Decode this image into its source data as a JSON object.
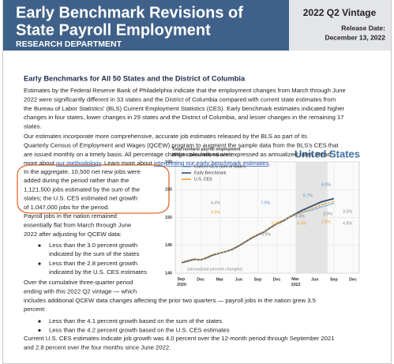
{
  "header": {
    "title_lines": [
      "Early Benchmark Revisions of",
      "State Payroll Employment"
    ],
    "department": "Research Department",
    "vintage": "2022 Q2 Vintage",
    "release_label": "Release Date:",
    "release_date": "December 13, 2022"
  },
  "section": {
    "heading": "Early Benchmarks for All 50 States and the District of Columbia",
    "paragraph_1": [
      "Estimates by the Federal Reserve Bank of Philadelphia indicate that the employment changes from March through June",
      "2022 were significantly different in 33 states and the District of Columbia compared with current state estimates from",
      "the Bureau of Labor Statistics' (BLS) Current Employment Statistics (CES). Early benchmark estimates indicated higher",
      "changes in four states, lower changes in 29 states and the District of Columbia, and lesser changes in the remaining 17",
      "states."
    ],
    "paragraph_2": [
      "Our estimates incorporate more comprehensive, accurate job estimates released by the BLS as part of its",
      "Quarterly Census of Employment and Wages (QCEW) program to augment the sample data from the BLS's CES that",
      "are issued monthly on a timely basis. All percentage change calculations are expressed as annualized rates. Read"
    ],
    "paragraph_2_last": [
      {
        "text": "more about ",
        "link": false
      },
      {
        "text": "our methodology",
        "link": true
      },
      {
        "text": ". Learn more about ",
        "link": false
      },
      {
        "text": "interpreting our early benchmark estimates",
        "link": true
      },
      {
        "text": ".",
        "link": false
      }
    ],
    "callout": [
      "In the aggregate, 10,500 net new jobs were",
      "added during the period rather than the",
      "1,121,500 jobs estimated by the sum of the",
      "states; the U.S. CES estimated net growth",
      "of 1,047,000 jobs for the period."
    ],
    "payroll_intro": [
      "Payroll jobs in the nation remained",
      "essentially flat from March through June",
      "2022 after adjusting for QCEW data:"
    ],
    "payroll_bullets": [
      [
        "Less than the 3.0 percent growth",
        "indicated by the sum of the states"
      ],
      [
        "Less than the 2.8 percent growth",
        "indicated by the U.S. CES estimates"
      ]
    ],
    "cumulative_intro": [
      "Over the cumulative three-quarter period",
      "ending with this 2022 Q2 vintage — which",
      "includes additional QCEW data changes affecting the prior two quarters — payroll jobs in the nation grew 3.5",
      "percent:"
    ],
    "cumulative_bullets": [
      "Less than the 4.1 percent growth based on the sum of the states",
      "Less than the 4.2 percent growth based on the U.S. CES estimates"
    ],
    "closing": [
      "Current U.S. CES estimates indicate job growth was 4.0 percent over the 12-month period through September 2021",
      "and 2.8 percent over the four months since June 2022."
    ]
  },
  "chart_data": {
    "type": "line",
    "title": "Total nonfarm payroll employment",
    "subtitle": "Millions (seasonally adjusted)",
    "region": "United States",
    "x": [
      "2020-09",
      "2020-10",
      "2020-11",
      "2020-12",
      "2021-01",
      "2021-02",
      "2021-03",
      "2021-04",
      "2021-05",
      "2021-06",
      "2021-07",
      "2021-08",
      "2021-09",
      "2021-10",
      "2021-11",
      "2021-12",
      "2022-01",
      "2022-02",
      "2022-03",
      "2022-04",
      "2022-05",
      "2022-06",
      "2022-07",
      "2022-08",
      "2022-09"
    ],
    "series": [
      {
        "name": "Current CES Sum of States",
        "color": "#8db8de",
        "values": [
          141.9,
          142.2,
          142.5,
          142.4,
          142.8,
          143.3,
          143.6,
          143.9,
          144.3,
          144.9,
          145.6,
          146.3,
          146.9,
          147.4,
          148.2,
          148.9,
          149.4,
          150.0,
          150.5,
          150.9,
          151.2,
          151.5,
          151.9,
          152.2,
          152.6
        ]
      },
      {
        "name": "Early Benchmark",
        "color": "#2f4f78",
        "values": [
          141.9,
          142.2,
          142.5,
          142.4,
          142.8,
          143.3,
          143.6,
          143.9,
          144.3,
          144.9,
          145.6,
          146.3,
          146.9,
          147.4,
          148.2,
          148.9,
          149.4,
          150.1,
          150.7,
          151.3,
          151.8,
          152.3,
          152.8,
          153.1,
          153.4
        ]
      },
      {
        "name": "U.S. CES",
        "color": "#e8a33b",
        "values": [
          142.0,
          142.3,
          142.6,
          142.4,
          142.9,
          143.4,
          143.6,
          143.9,
          144.4,
          145.0,
          145.7,
          146.4,
          147.0,
          147.5,
          148.3,
          149.0,
          149.5,
          150.1,
          150.6,
          151.0,
          151.4,
          151.8,
          152.3,
          152.6,
          152.9
        ]
      }
    ],
    "xlim": [
      "2020-08",
      "2023-01"
    ],
    "xticks": [
      {
        "value": "2020-09",
        "label": "Sep 2020"
      },
      {
        "value": "2020-12",
        "label": "Dec"
      },
      {
        "value": "2021-03",
        "label": "Mar"
      },
      {
        "value": "2021-06",
        "label": "Jun"
      },
      {
        "value": "2021-09",
        "label": "Sep"
      },
      {
        "value": "2021-12",
        "label": "Dec"
      },
      {
        "value": "2022-03",
        "label": "Mar 2022"
      },
      {
        "value": "2022-06",
        "label": "Jun"
      },
      {
        "value": "2022-09",
        "label": "Sep"
      },
      {
        "value": "2022-12",
        "label": "Dec"
      }
    ],
    "ylim": [
      140,
      160
    ],
    "yticks": [
      140,
      145,
      150,
      155,
      160
    ],
    "grid": true,
    "annotations": [
      {
        "text": "4.4%",
        "color": "#888888"
      },
      {
        "text": "4.9%",
        "color": "#e8a33b"
      },
      {
        "text": "7.0%",
        "color": "#5b8fc7"
      },
      {
        "text": "5.7%",
        "color": "#5b8fc7"
      },
      {
        "text": "6.0%",
        "color": "#5b8fc7"
      },
      {
        "text": "3.0%",
        "color": "#888888"
      },
      {
        "text": "4.4%",
        "color": "#888888"
      },
      {
        "text": "2.8%",
        "color": "#e8a33b"
      },
      {
        "text": "5.3%",
        "color": "#e8a33b"
      },
      {
        "text": "4.4%",
        "color": "#e8a33b"
      },
      {
        "text": "4.9%",
        "color": "#888888"
      },
      {
        "text": "3.3%",
        "color": "#888888"
      },
      {
        "text": "4.9%",
        "color": "#888888"
      },
      {
        "text": "(annualized percent changes)",
        "color": "#888888"
      }
    ]
  }
}
